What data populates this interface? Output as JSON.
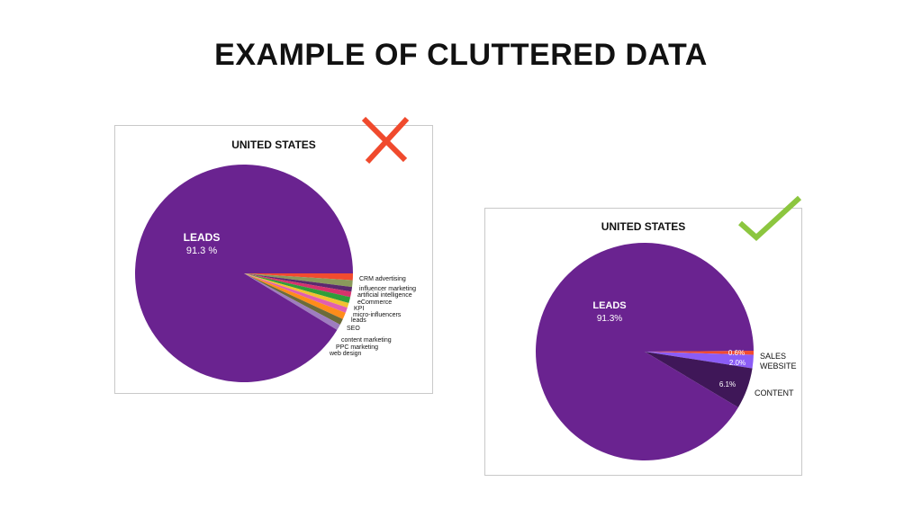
{
  "page": {
    "title": "EXAMPLE OF CLUTTERED DATA"
  },
  "marks": {
    "bad": {
      "icon": "x-mark-icon",
      "color": "#f04a2d"
    },
    "good": {
      "icon": "check-mark-icon",
      "color": "#8cc63f"
    }
  },
  "chart_data": [
    {
      "type": "pie",
      "title": "UNITED STATES",
      "legend": "none",
      "main_label": {
        "name": "LEADS",
        "value_text": "91.3 %"
      },
      "slices": [
        {
          "name": "LEADS",
          "value": 91.3,
          "color": "#6a2390"
        },
        {
          "name": "CRM advertising",
          "value": 1.0,
          "color": "#f24b2f"
        },
        {
          "name": "influencer marketing",
          "value": 1.0,
          "color": "#8a9a5b"
        },
        {
          "name": "artificial intelligence",
          "value": 0.7,
          "color": "#5b2a6e"
        },
        {
          "name": "eCommerce",
          "value": 0.8,
          "color": "#d6336c"
        },
        {
          "name": "KPI",
          "value": 0.9,
          "color": "#2f9e3a"
        },
        {
          "name": "micro-influencers",
          "value": 0.7,
          "color": "#f2c230"
        },
        {
          "name": "leads",
          "value": 0.8,
          "color": "#e05fb0"
        },
        {
          "name": "SEO",
          "value": 1.0,
          "color": "#ff8c1a"
        },
        {
          "name": "content marketing",
          "value": 0.9,
          "color": "#6b6b3a"
        },
        {
          "name": "PPC marketing",
          "value": 0.9,
          "color": "#9e7dbf"
        },
        {
          "name": "web design",
          "value": 0.0,
          "color": "#7a5a9e"
        }
      ]
    },
    {
      "type": "pie",
      "title": "UNITED STATES",
      "legend": "none",
      "slices": [
        {
          "name": "LEADS",
          "value": 91.3,
          "value_text": "91.3%",
          "color": "#6a2390"
        },
        {
          "name": "SALES",
          "value": 0.6,
          "value_text": "0.6%",
          "color": "#f24b2f"
        },
        {
          "name": "WEBSITE",
          "value": 2.0,
          "value_text": "2.0%",
          "color": "#8b5cf6"
        },
        {
          "name": "CONTENT",
          "value": 6.1,
          "value_text": "6.1%",
          "color": "#3f1758"
        }
      ]
    }
  ]
}
